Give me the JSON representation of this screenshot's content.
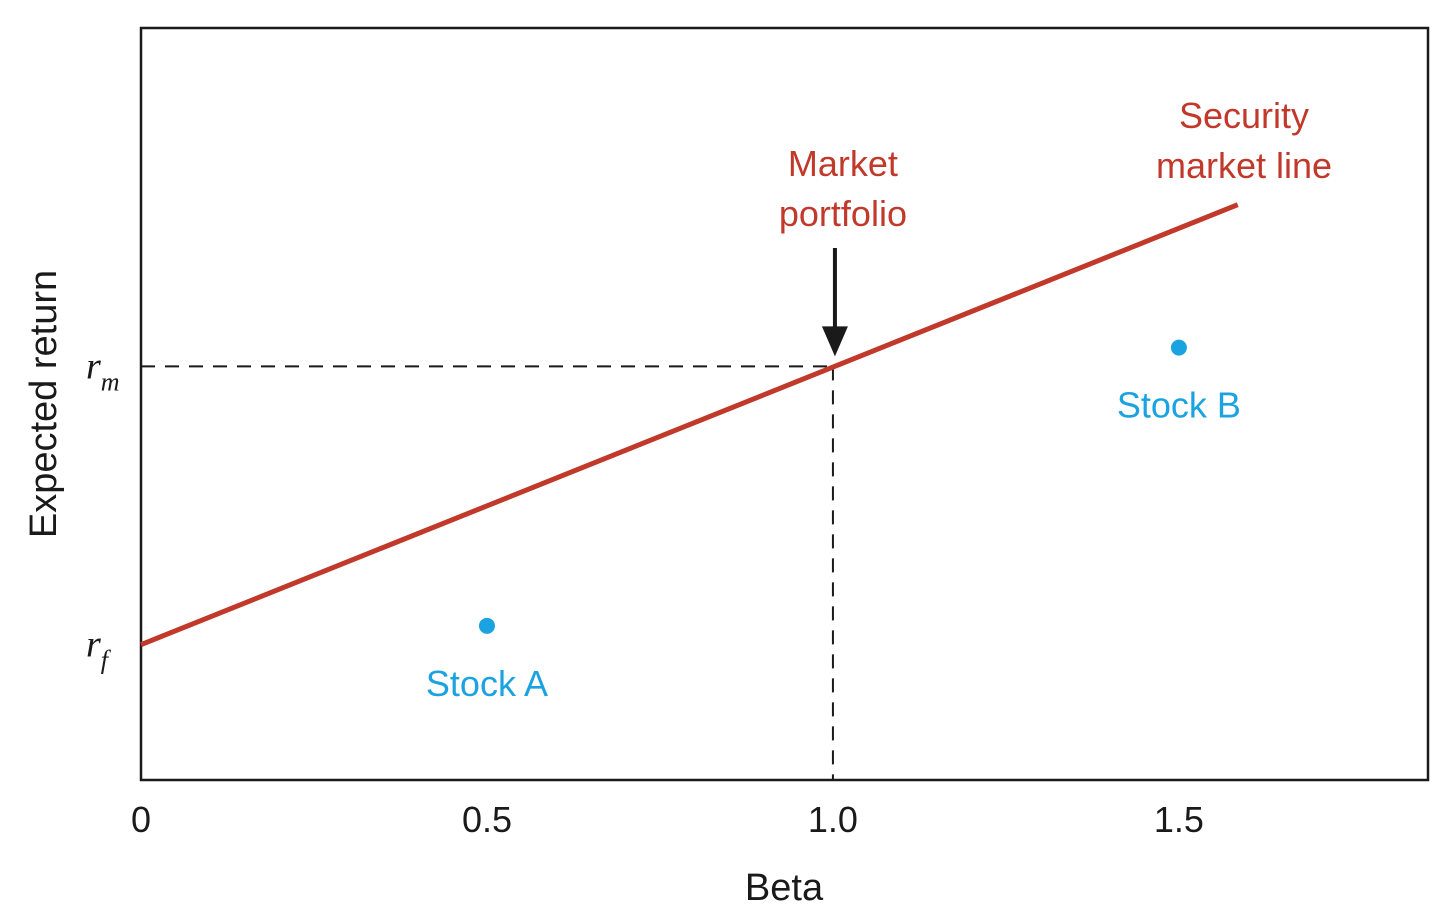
{
  "chart_data": {
    "type": "line",
    "xlabel": "Beta",
    "ylabel": "Expected return",
    "xlim": [
      0,
      1.86
    ],
    "ylim": [
      0,
      1
    ],
    "x_ticks": [
      {
        "value": 0,
        "label": "0"
      },
      {
        "value": 0.5,
        "label": "0.5"
      },
      {
        "value": 1.0,
        "label": "1.0"
      },
      {
        "value": 1.5,
        "label": "1.5"
      }
    ],
    "y_levels": [
      {
        "key": "rm",
        "main": "r",
        "sub": "m",
        "value": 0.55
      },
      {
        "key": "rf",
        "main": "r",
        "sub": "f",
        "value": 0.18
      }
    ],
    "security_market_line": {
      "label_lines": [
        "Security",
        "market line"
      ],
      "color": "#c0392b",
      "x": [
        0,
        1.585
      ],
      "y": [
        0.18,
        0.765
      ]
    },
    "market_portfolio": {
      "label_lines": [
        "Market",
        "portfolio"
      ],
      "beta": 1.0,
      "return": 0.55,
      "color": "#c0392b"
    },
    "points": [
      {
        "label": "Stock A",
        "x": 0.5,
        "y": 0.205,
        "color": "#1aa3e0"
      },
      {
        "label": "Stock B",
        "x": 1.5,
        "y": 0.575,
        "color": "#1aa3e0"
      }
    ],
    "grid": false,
    "legend": "none"
  }
}
